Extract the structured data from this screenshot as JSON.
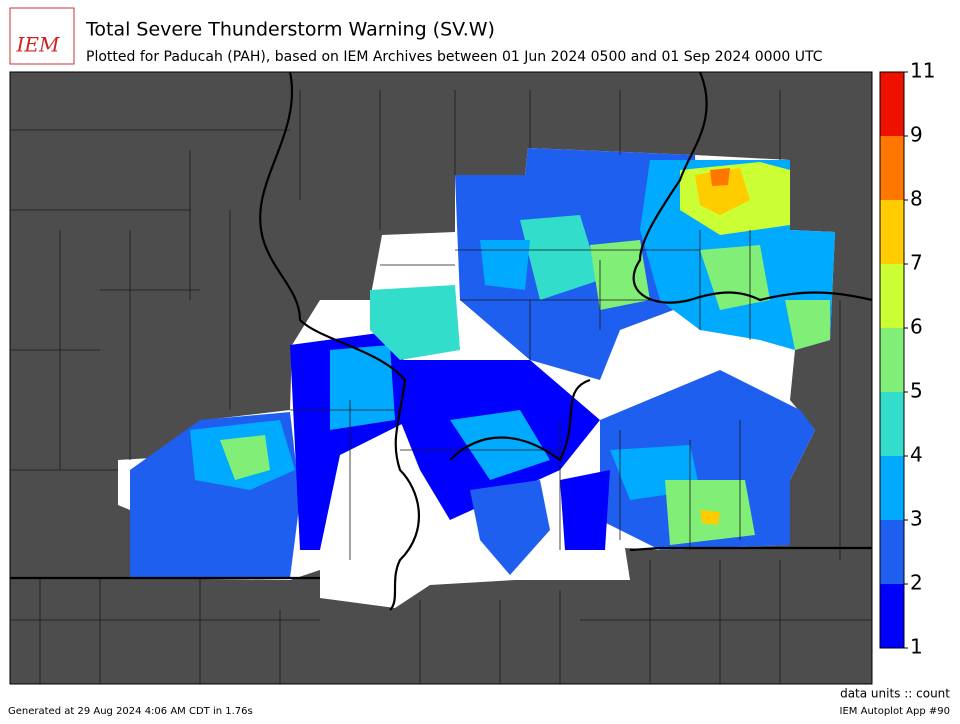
{
  "header": {
    "logo": "IEM",
    "title": "Total Severe Thunderstorm Warning (SV.W)",
    "subtitle": "Plotted for Paducah (PAH), based on IEM Archives  between 01 Jun 2024 0500 and 01 Sep 2024 0000 UTC"
  },
  "colorbar": {
    "levels": [
      1,
      2,
      3,
      4,
      5,
      6,
      7,
      8,
      9,
      11
    ],
    "colors": [
      "#0000ff",
      "#1f5ff0",
      "#00aaff",
      "#33ddcc",
      "#80ee77",
      "#ccff33",
      "#ffcc00",
      "#ff7700",
      "#ee1100"
    ],
    "label": "data units :: count"
  },
  "footer": {
    "left": "Generated at 29 Aug 2024 4:06 AM CDT in 1.76s",
    "right": "IEM Autoplot App #90"
  }
}
